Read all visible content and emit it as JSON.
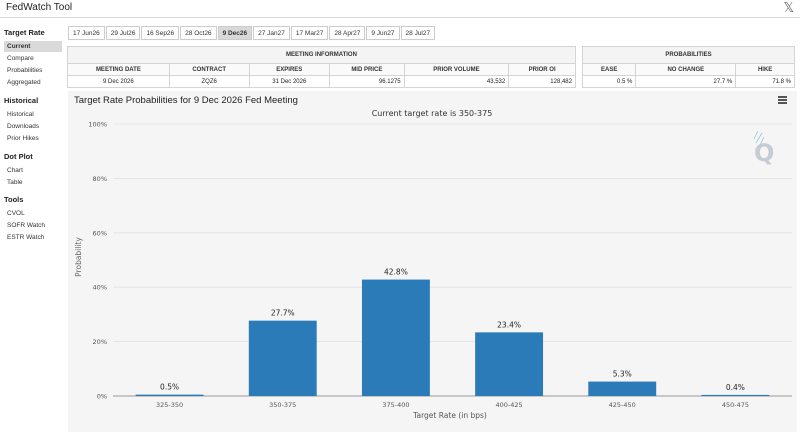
{
  "app": {
    "title": "FedWatch Tool",
    "close_glyph": "𝕏"
  },
  "sidebar": {
    "sections": [
      {
        "title": "Target Rate",
        "items": [
          "Current",
          "Compare",
          "Probabilities",
          "Aggregated"
        ]
      },
      {
        "title": "Historical",
        "items": [
          "Historical",
          "Downloads",
          "Prior Hikes"
        ]
      },
      {
        "title": "Dot Plot",
        "items": [
          "Chart",
          "Table"
        ]
      },
      {
        "title": "Tools",
        "items": [
          "CVOL",
          "SOFR Watch",
          "ESTR Watch"
        ]
      }
    ],
    "active_item": "Current"
  },
  "tabs": {
    "items": [
      "17 Jun26",
      "29 Jul26",
      "16 Sep26",
      "28 Oct26",
      "9 Dec26",
      "27 Jan27",
      "17 Mar27",
      "28 Apr27",
      "9 Jun27",
      "28 Jul27"
    ],
    "active": "9 Dec26"
  },
  "meeting_info": {
    "header": "MEETING INFORMATION",
    "columns": [
      "MEETING DATE",
      "CONTRACT",
      "EXPIRES",
      "MID PRICE",
      "PRIOR VOLUME",
      "PRIOR OI"
    ],
    "values": [
      "9 Dec 2026",
      "ZQZ6",
      "31 Dec 2026",
      "96.1275",
      "43,532",
      "128,482"
    ]
  },
  "probabilities": {
    "header": "PROBABILITIES",
    "columns": [
      "EASE",
      "NO CHANGE",
      "HIKE"
    ],
    "values": [
      "0.5 %",
      "27.7 %",
      "71.8 %"
    ]
  },
  "chart_panel": {
    "title": "Target Rate Probabilities for 9 Dec 2026 Fed Meeting",
    "menu_icon": "hamburger-menu-icon",
    "watermark_icon": "q-logo-icon"
  },
  "chart_data": {
    "type": "bar",
    "subtitle": "Current target rate is 350-375",
    "categories": [
      "325-350",
      "350-375",
      "375-400",
      "400-425",
      "425-450",
      "450-475"
    ],
    "values": [
      0.5,
      27.7,
      42.8,
      23.4,
      5.3,
      0.4
    ],
    "value_labels": [
      "0.5%",
      "27.7%",
      "42.8%",
      "23.4%",
      "5.3%",
      "0.4%"
    ],
    "xlabel": "Target Rate (in bps)",
    "ylabel": "Probability",
    "ylim": [
      0,
      100
    ],
    "yticks": [
      "0%",
      "20%",
      "40%",
      "60%",
      "80%",
      "100%"
    ],
    "grid": true,
    "bar_color": "#2b7bb9"
  }
}
